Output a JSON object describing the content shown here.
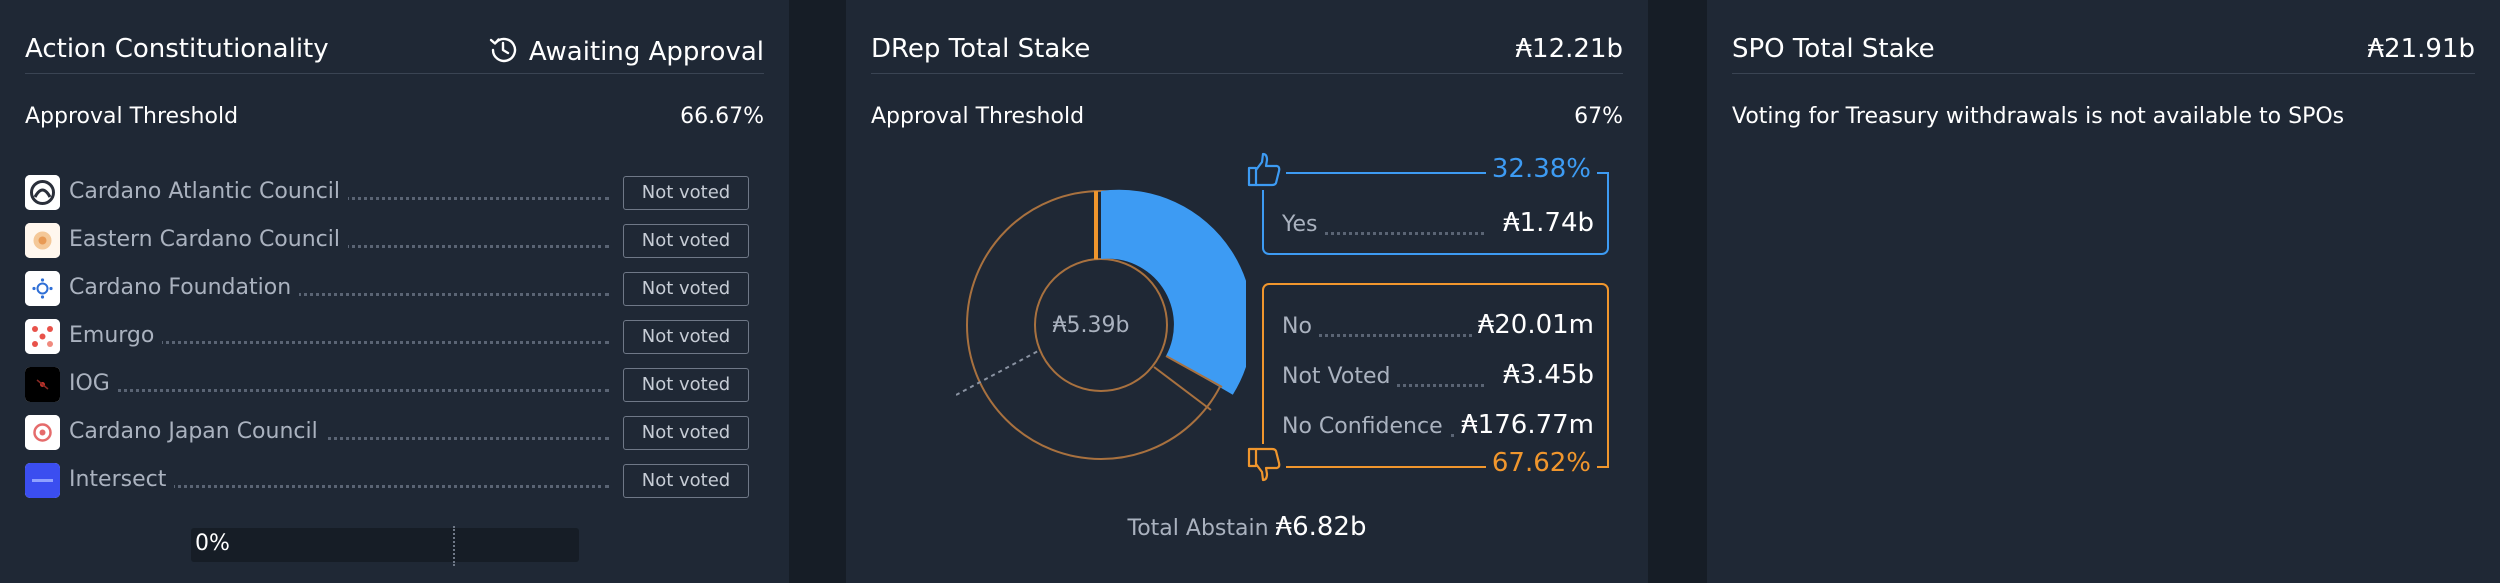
{
  "constitutionality": {
    "title": "Action Constitutionality",
    "status": "Awaiting Approval",
    "threshold_label": "Approval Threshold",
    "threshold_value": "66.67%",
    "members": [
      {
        "name": "Cardano Atlantic Council",
        "vote": "Not voted",
        "logo": "cardano-atlantic-council-logo"
      },
      {
        "name": "Eastern Cardano Council",
        "vote": "Not voted",
        "logo": "eastern-cardano-council-logo"
      },
      {
        "name": "Cardano Foundation",
        "vote": "Not voted",
        "logo": "cardano-foundation-logo"
      },
      {
        "name": "Emurgo",
        "vote": "Not voted",
        "logo": "emurgo-logo"
      },
      {
        "name": "IOG",
        "vote": "Not voted",
        "logo": "iog-logo"
      },
      {
        "name": "Cardano Japan Council",
        "vote": "Not voted",
        "logo": "cardano-japan-council-logo"
      },
      {
        "name": "Intersect",
        "vote": "Not voted",
        "logo": "intersect-logo"
      }
    ],
    "progress_label": "0%",
    "progress_value": 0,
    "threshold_marker_fraction": 0.6667
  },
  "drep": {
    "title": "DRep Total Stake",
    "total_stake": "₳12.21b",
    "threshold_label": "Approval Threshold",
    "threshold_value": "67%",
    "donut_center": "₳5.39b",
    "yes_pct": "32.38%",
    "yes_label": "Yes",
    "yes_amount": "₳1.74b",
    "no_pct": "67.62%",
    "no_rows": [
      {
        "label": "No",
        "amount": "₳20.01m"
      },
      {
        "label": "Not Voted",
        "amount": "₳3.45b"
      },
      {
        "label": "No Confidence",
        "amount": "₳176.77m"
      }
    ],
    "abstain_label": "Total Abstain",
    "abstain_value": "₳6.82b",
    "colors": {
      "yes": "#3d9bf3",
      "no": "#f0962d"
    }
  },
  "spo": {
    "title": "SPO Total Stake",
    "total_stake": "₳21.91b",
    "message": "Voting for Treasury withdrawals is not available to SPOs"
  }
}
